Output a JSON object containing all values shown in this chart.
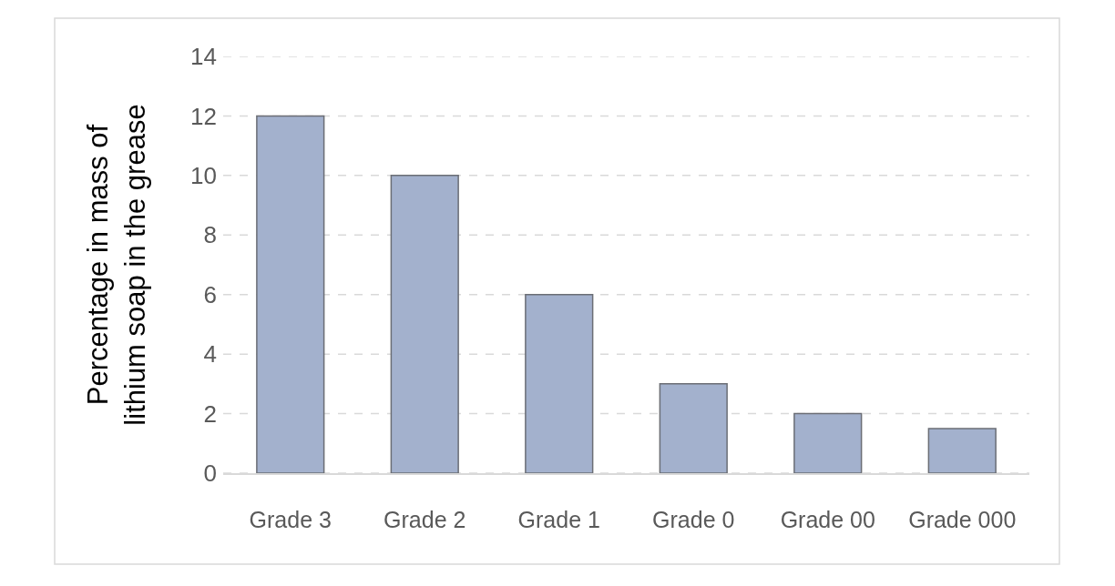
{
  "chart_data": {
    "type": "bar",
    "ylabel": "Percentage in mass of\nlithium soap in the grease",
    "categories": [
      "Grade 3",
      "Grade 2",
      "Grade 1",
      "Grade 0",
      "Grade 00",
      "Grade 000"
    ],
    "values": [
      12,
      10,
      6,
      3,
      2,
      1.5
    ],
    "color": "#a3b1cd",
    "ylim": [
      0,
      14
    ],
    "yticks": [
      0,
      2,
      4,
      6,
      8,
      10,
      12,
      14
    ],
    "grid": "y"
  }
}
